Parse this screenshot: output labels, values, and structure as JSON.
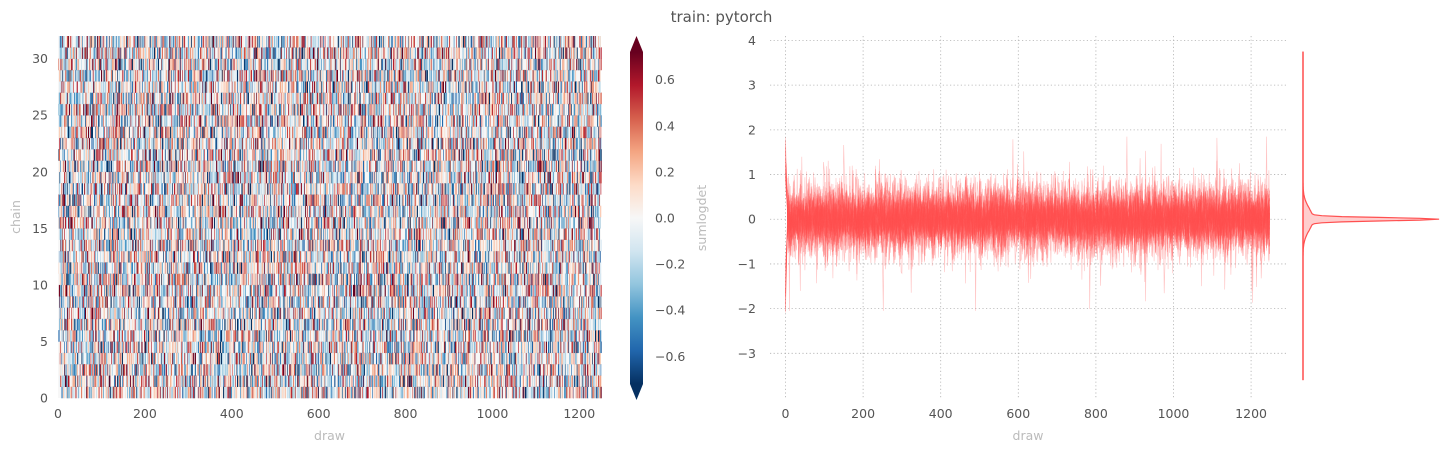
{
  "figure": {
    "title": "train: pytorch"
  },
  "chart_data": [
    {
      "type": "heatmap",
      "xlabel": "draw",
      "ylabel": "chain",
      "xlim": [
        0,
        1250
      ],
      "ylim": [
        0,
        32
      ],
      "xticks": [
        0,
        200,
        400,
        600,
        800,
        1000,
        1200
      ],
      "yticks": [
        0,
        5,
        10,
        15,
        20,
        25,
        30
      ],
      "n_chains": 32,
      "n_draws": 1250,
      "colormap": "RdBu_r",
      "colorbar": {
        "label": "sumlogdet",
        "vmin": -0.72,
        "vmax": 0.72,
        "ticks": [
          -0.6,
          -0.4,
          -0.2,
          0.0,
          0.2,
          0.4,
          0.6
        ],
        "tick_labels": [
          "−0.6",
          "−0.4",
          "−0.2",
          "0.0",
          "0.2",
          "0.4",
          "0.6"
        ],
        "extend": "both"
      }
    },
    {
      "type": "line",
      "xlabel": "draw",
      "ylabel": "",
      "xlim": [
        -40,
        1290
      ],
      "ylim": [
        -4.0,
        4.1
      ],
      "xticks": [
        0,
        200,
        400,
        600,
        800,
        1000,
        1200
      ],
      "yticks": [
        -3,
        -2,
        -1,
        0,
        1,
        2,
        3,
        4
      ],
      "ytick_labels": [
        "−3",
        "−2",
        "−1",
        "0",
        "1",
        "2",
        "3",
        "4"
      ],
      "grid": true,
      "color": "#ff5050",
      "series_description": "32 overlaid chains, noise around 0 with typical range -1 to 1, spikes to about 1.8 and -2.0",
      "mean": 0.0,
      "spread_std": 0.45,
      "initial_spike": [
        -2.1,
        2.0
      ],
      "density_marginal": {
        "type": "kde",
        "color": "#ff5050",
        "ymin": -3.6,
        "ymax": 3.75,
        "peak": 0.0
      }
    }
  ]
}
